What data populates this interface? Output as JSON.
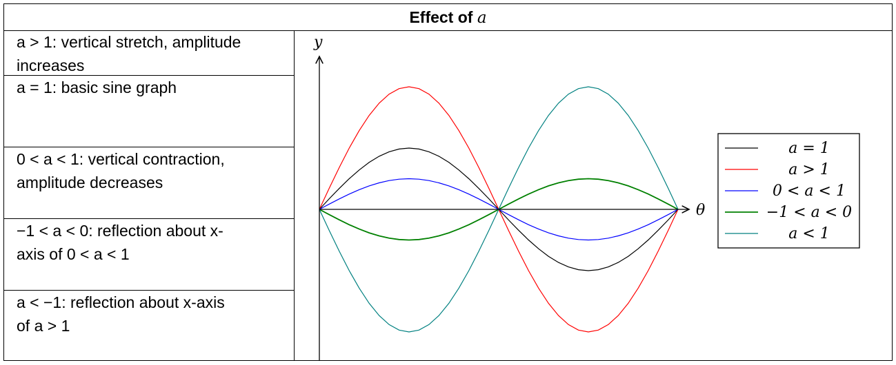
{
  "table": {
    "title_prefix": "Effect of",
    "title_var": "a",
    "rows": [
      {
        "line1": "a > 1: vertical stretch, amplitude",
        "line2": "increases"
      },
      {
        "line1": "a = 1: basic sine graph",
        "line2": ""
      },
      {
        "line1": "0 < a < 1: vertical contraction,",
        "line2": "amplitude decreases"
      },
      {
        "line1": "−1 < a < 0: reflection about x-",
        "line2": "axis of 0 < a < 1"
      },
      {
        "line1": "a < −1: reflection about x-axis",
        "line2": "of a > 1"
      }
    ]
  },
  "chart_data": {
    "type": "line",
    "xlabel": "θ",
    "ylabel": "y",
    "xlim": [
      0,
      360
    ],
    "ylim": [
      -2.45,
      2.45
    ],
    "series": [
      {
        "name": "a = 1",
        "a": 1,
        "color": "#000000"
      },
      {
        "name": "a > 1",
        "a": 2,
        "color": "#ff0000"
      },
      {
        "name": "0 < a < 1",
        "a": 0.5,
        "color": "#0000ff"
      },
      {
        "name": "−1 < a < 0",
        "a": -0.5,
        "color": "#008000"
      },
      {
        "name": "a < 1",
        "a": -2,
        "color": "#008080"
      }
    ],
    "legend_position": "right"
  }
}
